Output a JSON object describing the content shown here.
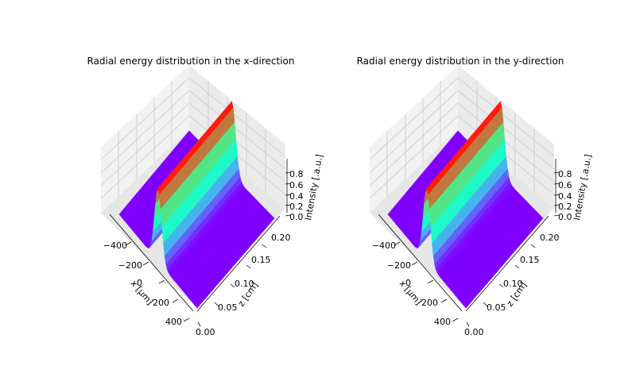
{
  "chart_data": [
    {
      "type": "surface3d",
      "title": "Radial energy distribution in the x-direction",
      "xlabel": "x [μm]",
      "ylabel": "z [cm]",
      "zlabel": "Intensity [.a.u.]",
      "x_ticks": [
        "−400",
        "−200",
        "0",
        "200",
        "400"
      ],
      "y_ticks": [
        "0.00",
        "0.05",
        "0.10",
        "0.15",
        "0.20"
      ],
      "z_ticks": [
        "0.0",
        "0.2",
        "0.4",
        "0.6",
        "0.8"
      ],
      "xlim": [
        -500,
        500
      ],
      "ylim": [
        0,
        0.22
      ],
      "zlim": [
        0,
        0.9
      ],
      "colormap": "rainbow",
      "description_shape": "gaussian beam along x, constant along z",
      "peak": 1.0,
      "waist_um": 60
    },
    {
      "type": "surface3d",
      "title": "Radial energy distribution in the y-direction",
      "xlabel": "x [μm]",
      "ylabel": "z [cm]",
      "zlabel": "Intensity [.a.u.]",
      "x_ticks": [
        "−400",
        "−200",
        "0",
        "200",
        "400"
      ],
      "y_ticks": [
        "0.00",
        "0.05",
        "0.10",
        "0.15",
        "0.20"
      ],
      "z_ticks": [
        "0.0",
        "0.2",
        "0.4",
        "0.6",
        "0.8"
      ],
      "xlim": [
        -500,
        500
      ],
      "ylim": [
        0,
        0.22
      ],
      "zlim": [
        0,
        0.9
      ],
      "colormap": "rainbow",
      "description_shape": "gaussian beam along x, constant along z",
      "peak": 1.0,
      "waist_um": 60
    }
  ]
}
